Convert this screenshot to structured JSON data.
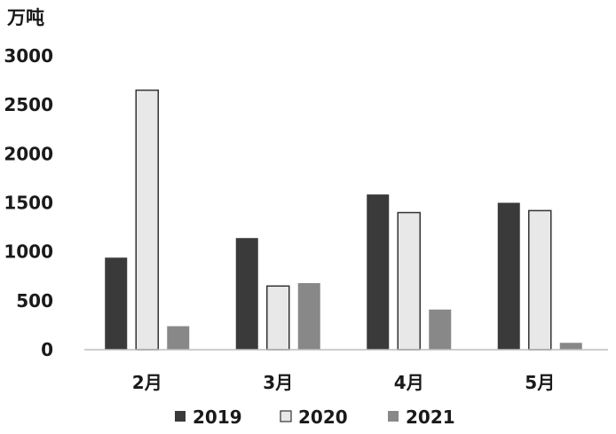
{
  "chart_data": {
    "type": "bar",
    "unit_label": "万吨",
    "categories": [
      "2月",
      "3月",
      "4月",
      "5月"
    ],
    "series": [
      {
        "name": "2019",
        "values": [
          940,
          1140,
          1585,
          1500
        ],
        "color": "#3a3a3a"
      },
      {
        "name": "2020",
        "values": [
          2650,
          650,
          1400,
          1420
        ],
        "color": "#e8e8e8"
      },
      {
        "name": "2021",
        "values": [
          240,
          680,
          410,
          70
        ],
        "color": "#888888"
      }
    ],
    "yticks": [
      0,
      500,
      1000,
      1500,
      2000,
      2500,
      3000
    ],
    "ylim": [
      0,
      3000
    ],
    "legend_position": "bottom",
    "grid": false
  }
}
